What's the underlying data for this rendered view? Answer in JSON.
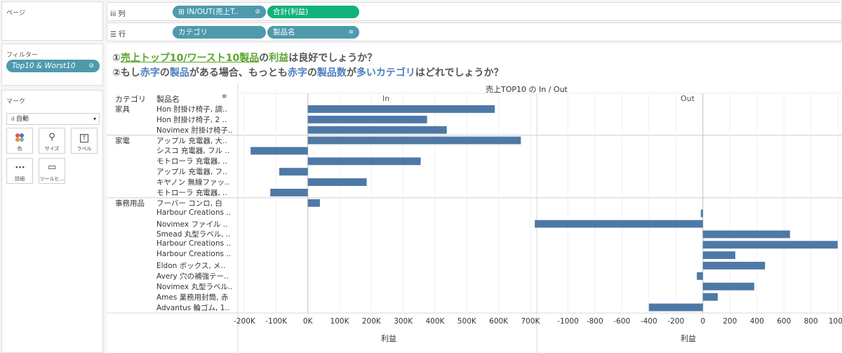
{
  "left_panel": {
    "pages_title": "ページ",
    "filters_title": "フィルター",
    "filter_pill": "Top10 & Worst10",
    "marks_title": "マーク",
    "mark_type": "自動",
    "mark_buttons": [
      {
        "label": "色",
        "icon": "color-icon"
      },
      {
        "label": "サイズ",
        "icon": "size-icon"
      },
      {
        "label": "ラベル",
        "icon": "label-icon"
      },
      {
        "label": "詳細",
        "icon": "detail-icon"
      },
      {
        "label": "ツールヒ...",
        "icon": "tooltip-icon"
      }
    ]
  },
  "shelves": {
    "columns_label": "列",
    "columns_pills": [
      "IN/OUT(売上T..",
      "合計(利益)"
    ],
    "rows_label": "行",
    "rows_pills": [
      "カテゴリ",
      "製品名"
    ]
  },
  "title": {
    "line1": [
      "①",
      "売上トップ10/ワースト10製品",
      "の",
      "利益",
      "は良好でしょうか？"
    ],
    "line2": [
      "②もし",
      "赤字",
      "の",
      "製品",
      "がある場合、もっとも",
      "赤字",
      "の",
      "製品数",
      "が",
      "多い",
      "カテゴリ",
      "はどれでしょうか？"
    ]
  },
  "table": {
    "category_header": "カテゴリ",
    "product_header": "製品名",
    "top_header": "売上TOP10 の In / Out",
    "categories": [
      {
        "name": "家具",
        "rows": [
          "Hon 肘掛け椅子, 調..",
          "Hon 肘掛け椅子, 2 ..",
          "Novimex 肘掛け椅子.."
        ]
      },
      {
        "name": "家電",
        "rows": [
          "アップル 充電器, 大..",
          "シスコ 充電器, フル ..",
          "モトローラ 充電器, ..",
          "アップル 充電器, フ..",
          "キヤノン 無線ファッ..",
          "モトローラ 充電器, .."
        ]
      },
      {
        "name": "事務用品",
        "rows": [
          "フーバー コンロ, 白",
          "Harbour Creations ..",
          "Novimex ファイル ..",
          "Smead 丸型ラベル, ..",
          "Harbour Creations ..",
          "Harbour Creations ..",
          "Eldon ボックス, メ..",
          "Avery 穴の補強テー..",
          "Novimex 丸型ラベル..",
          "Ames 業務用封筒, 赤",
          "Advantus 輪ゴム, 1.."
        ]
      }
    ]
  },
  "chart_data": {
    "type": "bar",
    "orientation": "horizontal",
    "title": "売上TOP10 の In / Out",
    "panes": [
      {
        "name": "In",
        "xlabel": "利益",
        "xlim": [
          -220000,
          720000
        ],
        "ticks": [
          -200000,
          -100000,
          0,
          100000,
          200000,
          300000,
          400000,
          500000,
          600000,
          700000
        ],
        "tick_labels": [
          "-200K",
          "-100K",
          "0K",
          "100K",
          "200K",
          "300K",
          "400K",
          "500K",
          "600K",
          "700K"
        ],
        "values": [
          588000,
          375000,
          437000,
          670000,
          -180000,
          355000,
          -90000,
          185000,
          -118000,
          38000,
          null,
          null,
          null,
          null,
          null,
          null,
          null,
          null,
          null,
          null
        ]
      },
      {
        "name": "Out",
        "xlabel": "利益",
        "xlim": [
          -1230,
          1030
        ],
        "ticks": [
          -1000,
          -800,
          -600,
          -400,
          -200,
          0,
          200,
          400,
          600,
          800,
          1000
        ],
        "tick_labels": [
          "-1000",
          "-800",
          "-600",
          "-400",
          "-200",
          "0",
          "200",
          "400",
          "600",
          "800",
          "1000"
        ],
        "values": [
          null,
          null,
          null,
          null,
          null,
          null,
          null,
          null,
          null,
          null,
          -15,
          -1245,
          645,
          998,
          240,
          460,
          -45,
          380,
          110,
          -400
        ]
      }
    ],
    "bar_color": "#4e79a7"
  }
}
